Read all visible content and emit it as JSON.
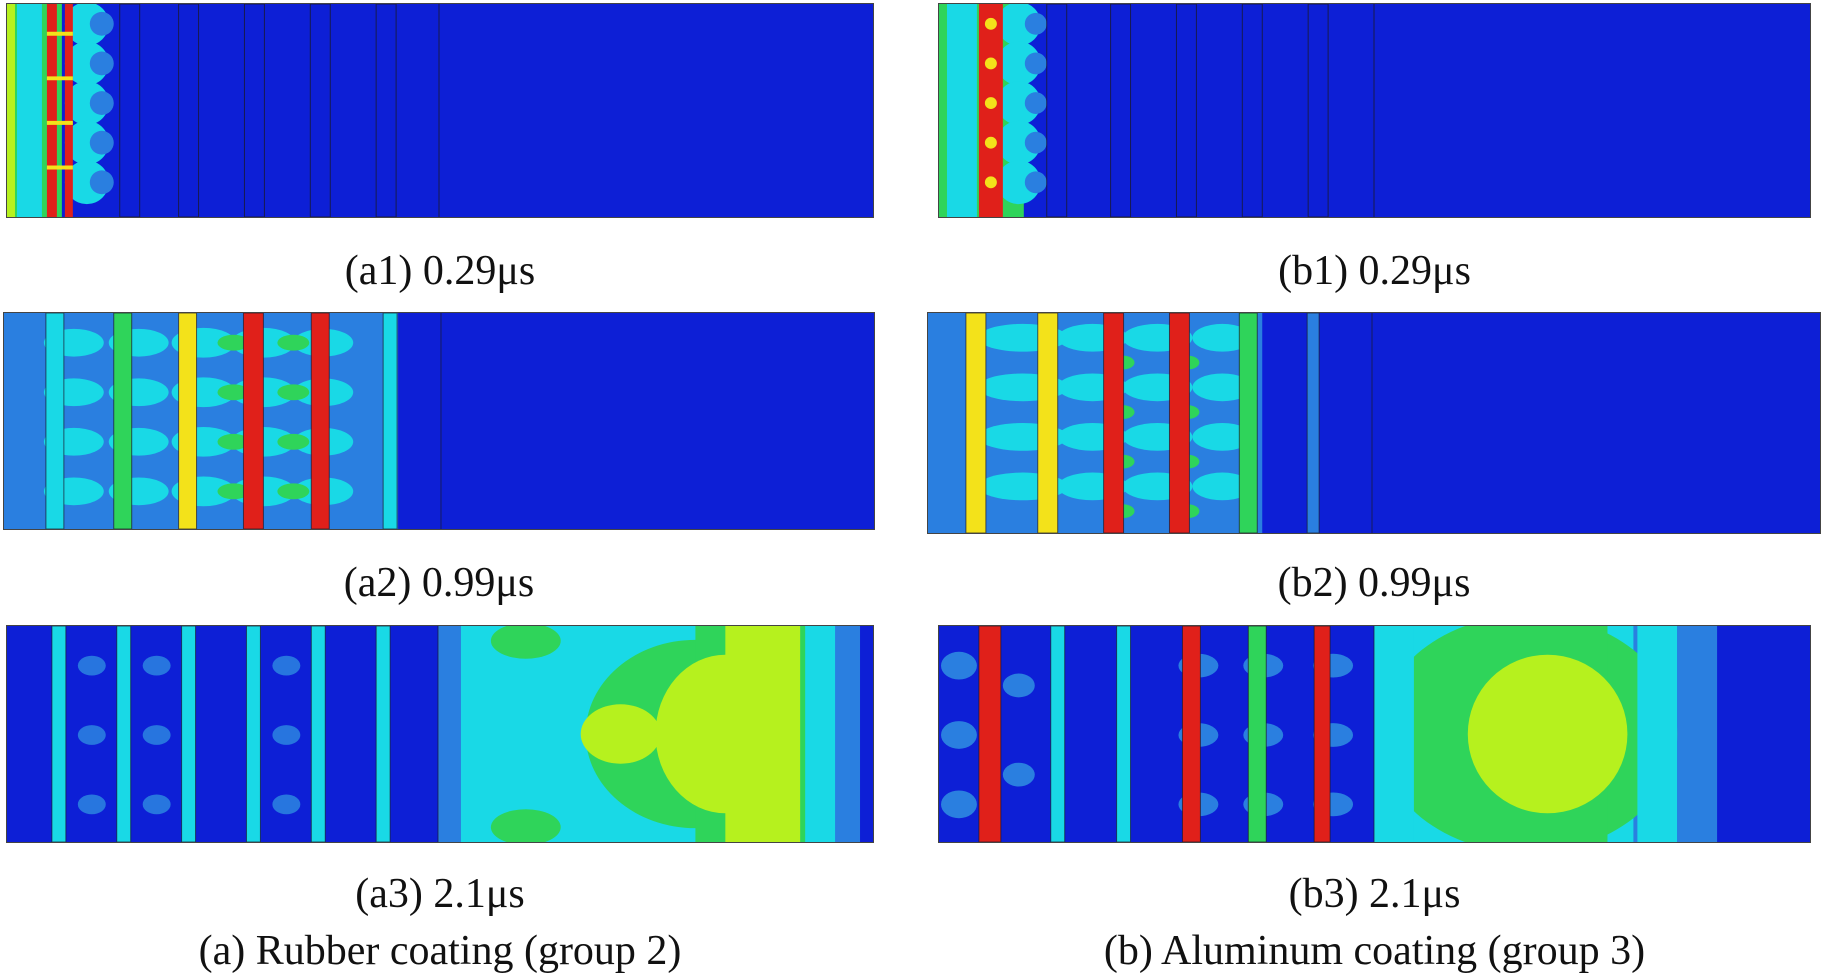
{
  "figure": {
    "column_a": {
      "title": "(a) Rubber coating (group 2)",
      "panels": [
        {
          "label": "(a1) 0.29μs"
        },
        {
          "label": "(a2) 0.99μs"
        },
        {
          "label": "(a3) 2.1μs"
        }
      ]
    },
    "column_b": {
      "title": "(b) Aluminum coating (group 3)",
      "panels": [
        {
          "label": "(b1) 0.29μs"
        },
        {
          "label": "(b2) 0.99μs"
        },
        {
          "label": "(b3) 2.1μs"
        }
      ]
    },
    "colormap": {
      "background_blue": "#0d1fd6",
      "mid_blue": "#2a7fe0",
      "cyan": "#19d9e6",
      "green": "#2fd45a",
      "yellow_green": "#b6f11e",
      "yellow": "#f3e21a",
      "red": "#e0201a",
      "dark_line": "#1a1a2e"
    }
  }
}
